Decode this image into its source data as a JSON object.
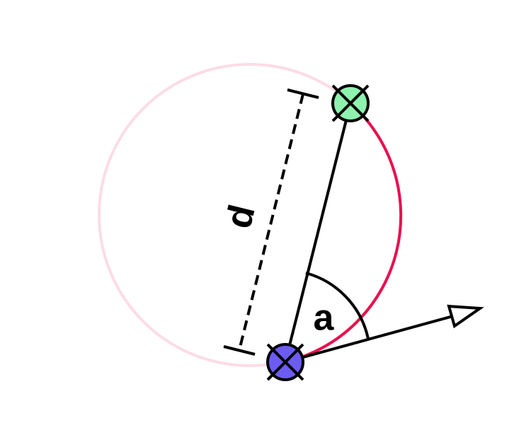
{
  "labels": {
    "distance": "d",
    "angle": "a"
  }
}
